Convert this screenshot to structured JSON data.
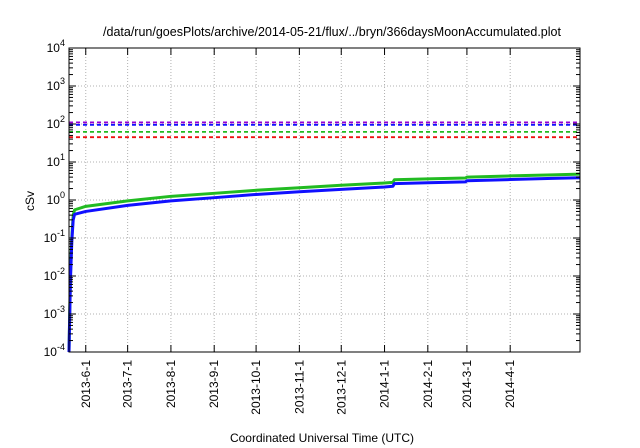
{
  "chart_data": {
    "type": "line",
    "title": "/data/run/goesPlots/archive/2014-05-21/flux/../bryn/366daysMoonAccumulated.plot",
    "xlabel": "Coordinated Universal Time (UTC)",
    "ylabel": "cSv",
    "yscale": "log",
    "ylim": [
      0.0001,
      10000
    ],
    "xlim": [
      "2013-05-20",
      "2014-05-21"
    ],
    "grid": true,
    "y_ticks": [
      {
        "value": 0.0001,
        "base": "10",
        "exp": "-4"
      },
      {
        "value": 0.001,
        "base": "10",
        "exp": "-3"
      },
      {
        "value": 0.01,
        "base": "10",
        "exp": "-2"
      },
      {
        "value": 0.1,
        "base": "10",
        "exp": "-1"
      },
      {
        "value": 1,
        "base": "10",
        "exp": "0"
      },
      {
        "value": 10,
        "base": "10",
        "exp": "1"
      },
      {
        "value": 100,
        "base": "10",
        "exp": "2"
      },
      {
        "value": 1000,
        "base": "10",
        "exp": "3"
      },
      {
        "value": 10000,
        "base": "10",
        "exp": "4"
      }
    ],
    "x_ticks": [
      {
        "date": "2013-06-01",
        "label": "2013-6-1"
      },
      {
        "date": "2013-07-01",
        "label": "2013-7-1"
      },
      {
        "date": "2013-08-01",
        "label": "2013-8-1"
      },
      {
        "date": "2013-09-01",
        "label": "2013-9-1"
      },
      {
        "date": "2013-10-01",
        "label": "2013-10-1"
      },
      {
        "date": "2013-11-01",
        "label": "2013-11-1"
      },
      {
        "date": "2013-12-01",
        "label": "2013-12-1"
      },
      {
        "date": "2014-01-01",
        "label": "2014-1-1"
      },
      {
        "date": "2014-02-01",
        "label": "2014-2-1"
      },
      {
        "date": "2014-03-01",
        "label": "2014-3-1"
      },
      {
        "date": "2014-04-01",
        "label": "2014-4-1"
      }
    ],
    "reference_lines": [
      {
        "value": 110,
        "color": "#9400d3"
      },
      {
        "value": 95,
        "color": "#1010ff"
      },
      {
        "value": 62,
        "color": "#22bb22"
      },
      {
        "value": 45,
        "color": "#ee1111"
      }
    ],
    "series": [
      {
        "color": "#22bb22",
        "x": [
          "2013-05-20",
          "2013-05-21",
          "2013-05-22",
          "2013-05-23",
          "2013-05-24",
          "2013-06-01",
          "2013-07-01",
          "2013-08-01",
          "2013-09-01",
          "2013-10-01",
          "2013-11-01",
          "2013-12-01",
          "2014-01-01",
          "2014-01-07",
          "2014-01-08",
          "2014-02-01",
          "2014-02-28",
          "2014-03-01",
          "2014-04-01",
          "2014-05-01",
          "2014-05-21"
        ],
        "y": [
          0.0001,
          0.01,
          0.1,
          0.4,
          0.55,
          0.68,
          0.95,
          1.25,
          1.5,
          1.8,
          2.1,
          2.45,
          2.8,
          2.9,
          3.4,
          3.6,
          3.8,
          4.0,
          4.3,
          4.6,
          4.8
        ]
      },
      {
        "color": "#1010ff",
        "x": [
          "2013-05-20",
          "2013-05-21",
          "2013-05-22",
          "2013-05-23",
          "2013-05-24",
          "2013-06-01",
          "2013-07-01",
          "2013-08-01",
          "2013-09-01",
          "2013-10-01",
          "2013-11-01",
          "2013-12-01",
          "2014-01-01",
          "2014-01-07",
          "2014-01-08",
          "2014-02-01",
          "2014-02-28",
          "2014-03-01",
          "2014-04-01",
          "2014-05-01",
          "2014-05-21"
        ],
        "y": [
          0.0001,
          0.007,
          0.08,
          0.3,
          0.42,
          0.5,
          0.72,
          0.95,
          1.15,
          1.4,
          1.65,
          1.9,
          2.2,
          2.3,
          2.7,
          2.85,
          3.0,
          3.2,
          3.45,
          3.7,
          3.85
        ]
      }
    ]
  }
}
